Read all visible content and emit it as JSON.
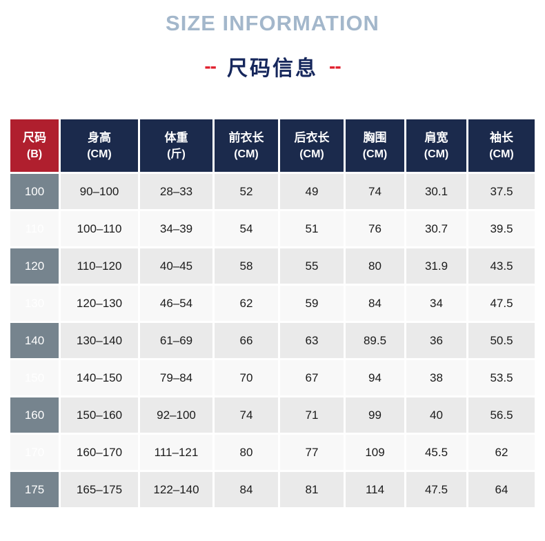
{
  "header": {
    "title_en": "SIZE INFORMATION",
    "title_zh": "尺码信息",
    "dash": "--"
  },
  "chart_data": {
    "type": "table",
    "title": "SIZE INFORMATION 尺码信息",
    "columns": [
      {
        "label": "尺码",
        "unit": "(B)"
      },
      {
        "label": "身高",
        "unit": "(CM)"
      },
      {
        "label": "体重",
        "unit": "(斤)"
      },
      {
        "label": "前衣长",
        "unit": "(CM)"
      },
      {
        "label": "后衣长",
        "unit": "(CM)"
      },
      {
        "label": "胸围",
        "unit": "(CM)"
      },
      {
        "label": "肩宽",
        "unit": "(CM)"
      },
      {
        "label": "袖长",
        "unit": "(CM)"
      }
    ],
    "rows": [
      [
        "100",
        "90–100",
        "28–33",
        "52",
        "49",
        "74",
        "30.1",
        "37.5"
      ],
      [
        "110",
        "100–110",
        "34–39",
        "54",
        "51",
        "76",
        "30.7",
        "39.5"
      ],
      [
        "120",
        "110–120",
        "40–45",
        "58",
        "55",
        "80",
        "31.9",
        "43.5"
      ],
      [
        "130",
        "120–130",
        "46–54",
        "62",
        "59",
        "84",
        "34",
        "47.5"
      ],
      [
        "140",
        "130–140",
        "61–69",
        "66",
        "63",
        "89.5",
        "36",
        "50.5"
      ],
      [
        "150",
        "140–150",
        "79–84",
        "70",
        "67",
        "94",
        "38",
        "53.5"
      ],
      [
        "160",
        "150–160",
        "92–100",
        "74",
        "71",
        "99",
        "40",
        "56.5"
      ],
      [
        "170",
        "160–170",
        "111–121",
        "80",
        "77",
        "109",
        "45.5",
        "62"
      ],
      [
        "175",
        "165–175",
        "122–140",
        "84",
        "81",
        "114",
        "47.5",
        "64"
      ]
    ]
  },
  "colors": {
    "title_en": "#a3b7cb",
    "title_zh": "#16275c",
    "dash_red": "#e01f2d",
    "header_navy": "#1b2a4c",
    "header_red": "#b01f2e",
    "size_col_slate": "#76848e",
    "row_gray": "#eaeaea",
    "row_light": "#f8f8f8"
  }
}
